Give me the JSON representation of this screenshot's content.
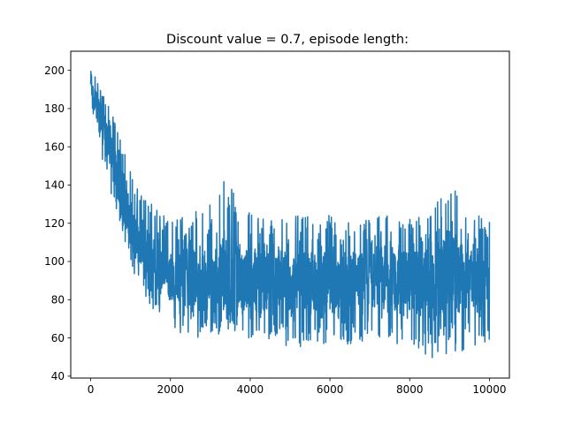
{
  "chart_data": {
    "type": "line",
    "title": "Discount value = 0.7, episode length:",
    "xlabel": "",
    "ylabel": "",
    "xlim": [
      -500,
      10500
    ],
    "ylim": [
      39,
      210
    ],
    "xticks": [
      0,
      2000,
      4000,
      6000,
      8000,
      10000
    ],
    "xtick_labels": [
      "0",
      "2000",
      "4000",
      "6000",
      "8000",
      "10000"
    ],
    "yticks": [
      40,
      60,
      80,
      100,
      120,
      140,
      160,
      180,
      200
    ],
    "ytick_labels": [
      "40",
      "60",
      "80",
      "100",
      "120",
      "140",
      "160",
      "180",
      "200"
    ],
    "grid": false,
    "series": [
      {
        "color": "#1f77b4",
        "x": [
          0,
          100,
          200,
          300,
          400,
          500,
          600,
          700,
          800,
          900,
          1000,
          1200,
          1400,
          1600,
          1800,
          2000,
          2500,
          3000,
          3500,
          4000,
          4500,
          5000,
          5500,
          6000,
          6500,
          7000,
          7500,
          8000,
          8500,
          9000,
          9500,
          10000
        ],
        "values": [
          190,
          185,
          178,
          170,
          164,
          157,
          150,
          142,
          135,
          127,
          120,
          110,
          103,
          98,
          95,
          93,
          91,
          90,
          90,
          90,
          90,
          89,
          90,
          90,
          89,
          90,
          90,
          90,
          90,
          91,
          90,
          90
        ],
        "range_min": [
          185,
          170,
          162,
          152,
          142,
          134,
          126,
          118,
          110,
          100,
          95,
          88,
          80,
          70,
          67,
          65,
          55,
          60,
          60,
          58,
          56,
          52,
          55,
          55,
          54,
          55,
          57,
          52,
          47,
          50,
          49,
          56
        ],
        "range_max": [
          200,
          200,
          195,
          190,
          185,
          180,
          175,
          170,
          162,
          155,
          150,
          140,
          138,
          130,
          128,
          125,
          128,
          133,
          153,
          128,
          125,
          126,
          125,
          126,
          126,
          124,
          127,
          125,
          125,
          146,
          127,
          125
        ]
      }
    ]
  }
}
